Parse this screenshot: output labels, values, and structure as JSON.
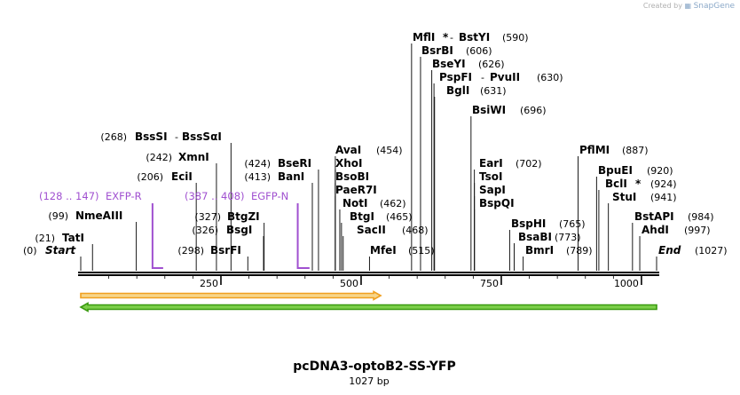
{
  "credit": {
    "text": "Created by",
    "brand": "SnapGene"
  },
  "plasmid": {
    "name": "pcDNA3-optoB2-SS-YFP",
    "length_label": "1027 bp",
    "length": 1027
  },
  "axis": {
    "ticks": [
      250,
      500,
      750,
      1000
    ]
  },
  "ends": [
    {
      "label": "Start",
      "pos_text": "(0)"
    },
    {
      "label": "End",
      "pos_text": "(1027)"
    }
  ],
  "sites": [
    {
      "id": "tati",
      "name": "TatI",
      "pos": 21,
      "pos_text": "(21)"
    },
    {
      "id": "nmeaiii",
      "name": "NmeAIII",
      "pos": 99,
      "pos_text": "(99)"
    },
    {
      "id": "ecii",
      "name": "EciI",
      "pos": 206,
      "pos_text": "(206)"
    },
    {
      "id": "xmni",
      "name": "XmnI",
      "pos": 242,
      "pos_text": "(242)"
    },
    {
      "id": "bsssi",
      "name": "BssSI",
      "name2": "BssSαI",
      "pos": 268,
      "pos_text": "(268)"
    },
    {
      "id": "bsrfi",
      "name": "BsrFI",
      "pos": 298,
      "pos_text": "(298)"
    },
    {
      "id": "bsgi",
      "name": "BsgI",
      "pos": 326,
      "pos_text": "(326)"
    },
    {
      "id": "btgzi",
      "name": "BtgZI",
      "pos": 327,
      "pos_text": "(327)"
    },
    {
      "id": "bani",
      "name": "BanI",
      "pos": 413,
      "pos_text": "(413)"
    },
    {
      "id": "bseri",
      "name": "BseRI",
      "pos": 424,
      "pos_text": "(424)"
    },
    {
      "id": "avai",
      "name": "AvaI",
      "pos": 454,
      "pos_text": "(454)"
    },
    {
      "id": "xhoi",
      "name": "XhoI",
      "pos": 454,
      "pos_text": ""
    },
    {
      "id": "bsobi",
      "name": "BsoBI",
      "pos": 454,
      "pos_text": ""
    },
    {
      "id": "paer7i",
      "name": "PaeR7I",
      "pos": 454,
      "pos_text": ""
    },
    {
      "id": "noti",
      "name": "NotI",
      "pos": 462,
      "pos_text": "(462)"
    },
    {
      "id": "btgi",
      "name": "BtgI",
      "pos": 465,
      "pos_text": "(465)"
    },
    {
      "id": "sacii",
      "name": "SacII",
      "pos": 468,
      "pos_text": "(468)"
    },
    {
      "id": "mfei",
      "name": "MfeI",
      "pos": 515,
      "pos_text": "(515)"
    },
    {
      "id": "mfli",
      "name": "MflI",
      "name2": "BstYI",
      "star": "*",
      "pos": 590,
      "pos_text": "(590)"
    },
    {
      "id": "bsrbi",
      "name": "BsrBI",
      "pos": 606,
      "pos_text": "(606)"
    },
    {
      "id": "bseyi",
      "name": "BseYI",
      "pos": 626,
      "pos_text": "(626)"
    },
    {
      "id": "pspfi",
      "name": "PspFI",
      "name2": "PvuII",
      "pos": 630,
      "pos_text": "(630)"
    },
    {
      "id": "bgli",
      "name": "BglI",
      "pos": 631,
      "pos_text": "(631)"
    },
    {
      "id": "bsiwi",
      "name": "BsiWI",
      "pos": 696,
      "pos_text": "(696)"
    },
    {
      "id": "eari",
      "name": "EarI",
      "pos": 702,
      "pos_text": "(702)"
    },
    {
      "id": "tsoi",
      "name": "TsoI",
      "pos": 702,
      "pos_text": ""
    },
    {
      "id": "sapi",
      "name": "SapI",
      "pos": 702,
      "pos_text": ""
    },
    {
      "id": "bspqi",
      "name": "BspQI",
      "pos": 702,
      "pos_text": ""
    },
    {
      "id": "bsphi",
      "name": "BspHI",
      "pos": 765,
      "pos_text": "(765)"
    },
    {
      "id": "bsabi",
      "name": "BsaBI",
      "pos": 773,
      "pos_text": "(773)"
    },
    {
      "id": "bmri",
      "name": "BmrI",
      "pos": 789,
      "pos_text": "(789)"
    },
    {
      "id": "pflmi",
      "name": "PflMI",
      "pos": 887,
      "pos_text": "(887)"
    },
    {
      "id": "bpuei",
      "name": "BpuEI",
      "pos": 920,
      "pos_text": "(920)"
    },
    {
      "id": "bcli",
      "name": "BclI",
      "star": "*",
      "pos": 924,
      "pos_text": "(924)"
    },
    {
      "id": "stui",
      "name": "StuI",
      "pos": 941,
      "pos_text": "(941)"
    },
    {
      "id": "bstapi",
      "name": "BstAPI",
      "pos": 984,
      "pos_text": "(984)"
    },
    {
      "id": "ahdi",
      "name": "AhdI",
      "pos": 997,
      "pos_text": "(997)"
    }
  ],
  "primers": [
    {
      "id": "exfp-r",
      "name": "EXFP-R",
      "range_text": "(128 .. 147)",
      "start": 128,
      "end": 147
    },
    {
      "id": "egfp-n",
      "name": "EGFP-N",
      "range_text": "(387 .. 408)",
      "start": 387,
      "end": 408
    }
  ],
  "features": [
    {
      "id": "orange-feature",
      "start": 0,
      "end": 535,
      "direction": "forward",
      "color": "#f0a020",
      "fill": "#f7d58a"
    },
    {
      "id": "green-feature",
      "start": 0,
      "end": 1027,
      "direction": "reverse",
      "color": "#3a9a10",
      "fill": "#7ccf4a"
    }
  ],
  "colors": {
    "primer": "#a050d0",
    "site_line": "#000000",
    "backbone": "#000000"
  }
}
